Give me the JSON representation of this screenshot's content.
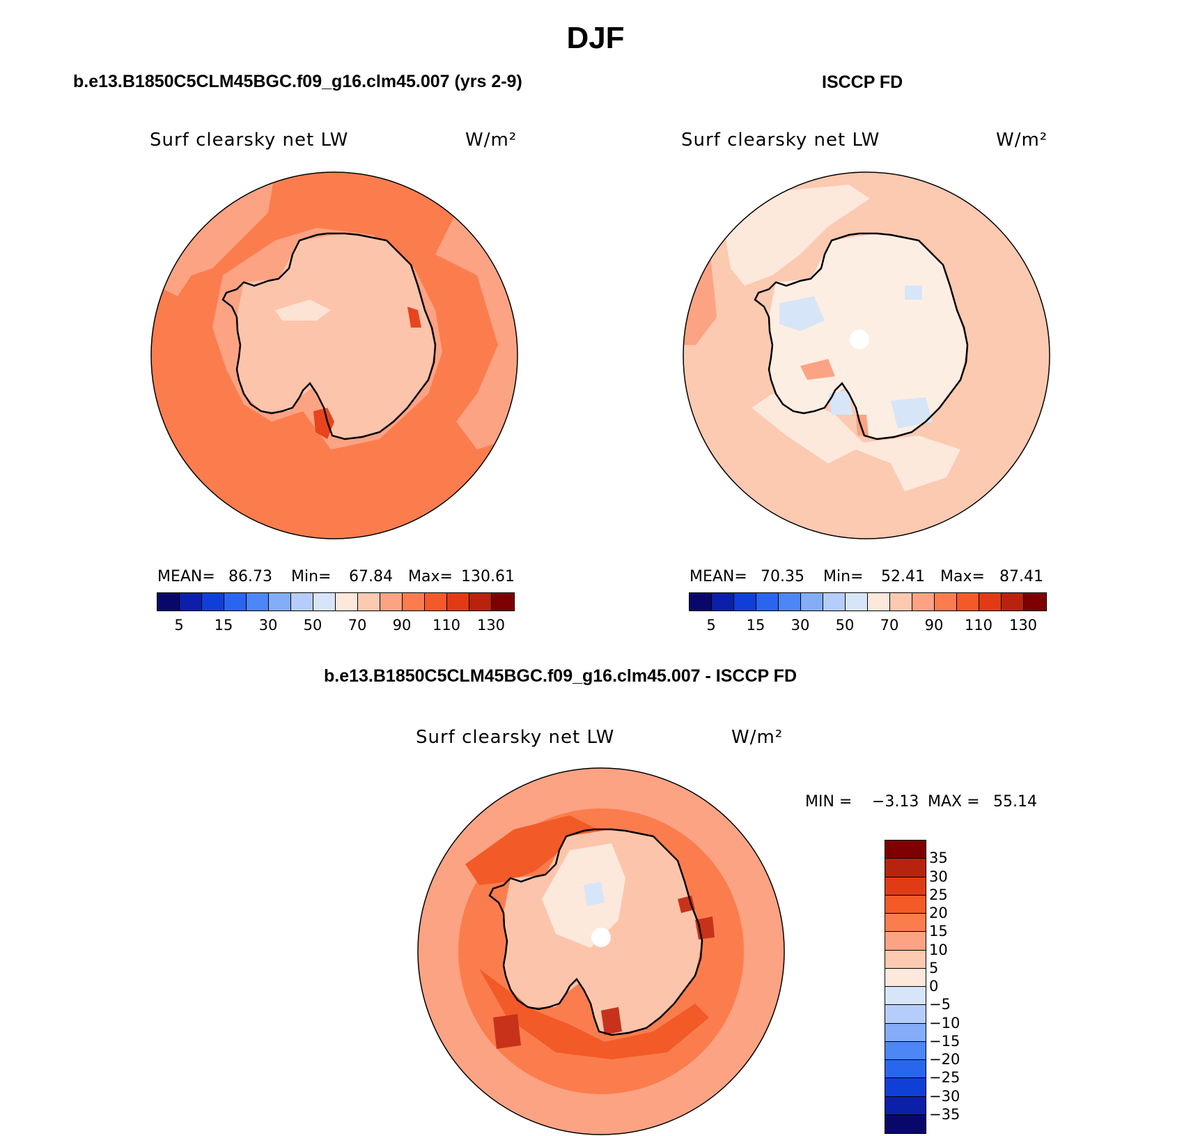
{
  "title": "DJF",
  "panels": [
    {
      "id": "model",
      "title": "b.e13.B1850C5CLM45BGC.f09_g16.clm45.007 (yrs 2-9)",
      "field_label": "Surf clearsky net LW",
      "units": "W/m²",
      "stats": {
        "mean_label": "MEAN=",
        "mean": "86.73",
        "min_label": "Min=",
        "min": "67.84",
        "max_label": "Max=",
        "max": "130.61"
      },
      "colorbar_ticks": [
        "5",
        "15",
        "30",
        "50",
        "70",
        "90",
        "110",
        "130"
      ],
      "colors": {
        "ocean": "#fb7d4e",
        "ocean_light": "#fca384",
        "ice": "#fcc5ab",
        "ice_light": "#fde3d4",
        "hotspot": "#e8441e"
      }
    },
    {
      "id": "obs",
      "title": "ISCCP FD",
      "field_label": "Surf clearsky net LW",
      "units": "W/m²",
      "stats": {
        "mean_label": "MEAN=",
        "mean": "70.35",
        "min_label": "Min=",
        "min": "52.41",
        "max_label": "Max=",
        "max": "87.41"
      },
      "colorbar_ticks": [
        "5",
        "15",
        "30",
        "50",
        "70",
        "90",
        "110",
        "130"
      ],
      "colors": {
        "ocean": "#fcc9b1",
        "ocean_light": "#fde8dc",
        "ice": "#fdeee4",
        "cold": "#d6e6f8",
        "warm": "#fca384"
      }
    },
    {
      "id": "diff",
      "title": "b.e13.B1850C5CLM45BGC.f09_g16.clm45.007 - ISCCP FD",
      "field_label": "Surf clearsky net LW",
      "units": "W/m²",
      "stats": {
        "min_label": "MIN =",
        "min": "−3.13",
        "max_label": "MAX =",
        "max": "55.14"
      },
      "colorbar_ticks": [
        "35",
        "30",
        "25",
        "20",
        "15",
        "10",
        "5",
        "0",
        "−5",
        "−10",
        "−15",
        "−20",
        "−25",
        "−30",
        "−35"
      ],
      "colors": {
        "ocean": "#fb7d4e",
        "ocean_dark": "#f25a28",
        "ring": "#fca384",
        "ice": "#fcc5ab",
        "ice_light": "#fde8dc",
        "hotspot": "#c8321a",
        "cold": "#d6e6f8"
      }
    }
  ],
  "seq_colormap": [
    "#08086b",
    "#0b1fa8",
    "#0f3fd6",
    "#2a65ee",
    "#4d86f5",
    "#84acf7",
    "#b5cdfa",
    "#d6e6f8",
    "#fde8dc",
    "#fcc9b1",
    "#fca384",
    "#fb7d4e",
    "#f25a28",
    "#e03b15",
    "#b8230e",
    "#7e0000"
  ],
  "div_colormap": [
    "#7e0000",
    "#b8230e",
    "#e03b15",
    "#f25a28",
    "#fb7d4e",
    "#fca384",
    "#fcc9b1",
    "#fde8dc",
    "#d6e6f8",
    "#b5cdfa",
    "#84acf7",
    "#4d86f5",
    "#2a65ee",
    "#0f3fd6",
    "#0b1fa8",
    "#08086b"
  ]
}
